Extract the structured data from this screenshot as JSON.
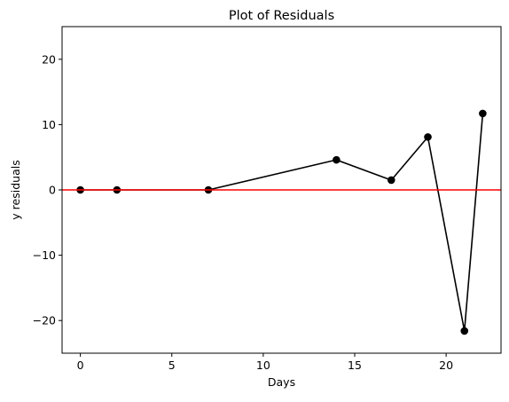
{
  "chart_data": {
    "type": "line",
    "title": "Plot of Residuals",
    "xlabel": "Days",
    "ylabel": "y residuals",
    "xlim": [
      -1,
      23
    ],
    "ylim": [
      -25,
      25
    ],
    "xticks": [
      0,
      5,
      10,
      15,
      20
    ],
    "yticks": [
      -20,
      -10,
      0,
      10,
      20
    ],
    "xtick_labels": [
      "0",
      "5",
      "10",
      "15",
      "20"
    ],
    "ytick_labels": [
      "−20",
      "−10",
      "0",
      "10",
      "20"
    ],
    "grid": false,
    "legend": "none",
    "series": [
      {
        "color": "#000000",
        "marker": "circle",
        "x": [
          0,
          2,
          7,
          14,
          17,
          19,
          21,
          22
        ],
        "y": [
          0,
          0,
          0,
          4.6,
          1.5,
          8.1,
          -21.6,
          11.7
        ]
      }
    ],
    "reference_line": {
      "y": 0,
      "color": "#ff0000"
    }
  }
}
